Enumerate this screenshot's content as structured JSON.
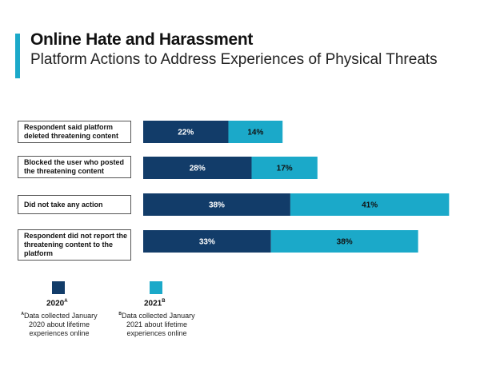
{
  "accent": "#1ba9c9",
  "colors": {
    "series_2020": "#123c69",
    "series_2021": "#1ba9c9"
  },
  "chart_data": {
    "type": "bar",
    "orientation": "horizontal",
    "stacked": true,
    "title": "Online Hate and Harassment",
    "subtitle": "Platform Actions to Address Experiences of Physical Threats",
    "categories": [
      "Respondent said platform deleted threatening content",
      "Blocked the user who posted the threatening content",
      "Did not take any action",
      "Respondent did not report the threatening content to the platform"
    ],
    "series": [
      {
        "name": "2020",
        "marker": "A",
        "values": [
          22,
          28,
          38,
          33
        ],
        "labels": [
          "22%",
          "28%",
          "38%",
          "33%"
        ]
      },
      {
        "name": "2021",
        "marker": "B",
        "values": [
          14,
          17,
          41,
          38
        ],
        "labels": [
          "14%",
          "17%",
          "41%",
          "38%"
        ]
      }
    ],
    "notes": [
      {
        "marker": "A",
        "line1": "Data collected January",
        "line2": "2020 about lifetime",
        "line3": "experiences online"
      },
      {
        "marker": "B",
        "line1": "Data collected January",
        "line2": "2021 about lifetime",
        "line3": "experiences online"
      }
    ]
  }
}
